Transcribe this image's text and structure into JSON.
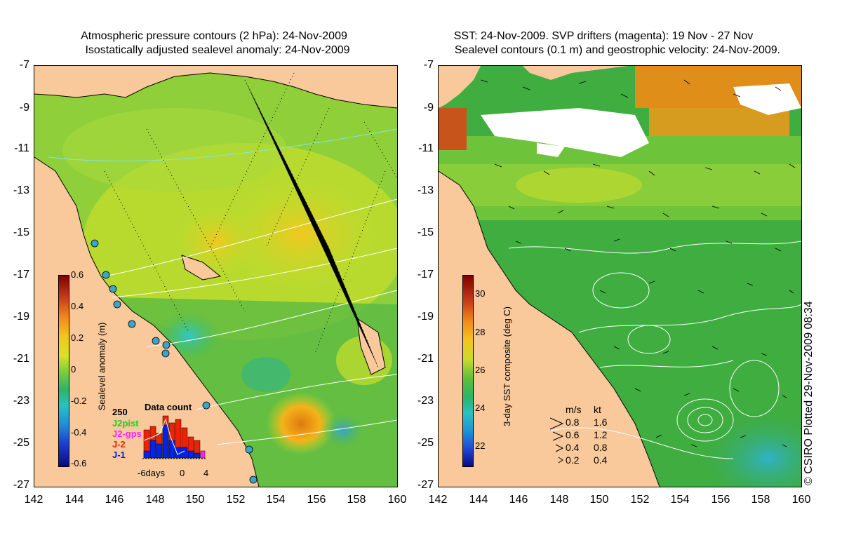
{
  "left_panel": {
    "title_line1": "Atmospheric pressure contours (2 hPa): 24-Nov-2009",
    "title_line2": "Isostatically adjusted sealevel anomaly: 24-Nov-2009",
    "colorbar": {
      "label": "Sealevel anomaly (m)",
      "ticks": [
        "0.6",
        "0.4",
        "0.2",
        "0",
        "-0.2",
        "-0.4",
        "-0.6"
      ]
    },
    "data_count": {
      "title": "Data count",
      "max_label": "250",
      "series": [
        {
          "name": "J2pist",
          "color": "#22cc22"
        },
        {
          "name": "J2-gps",
          "color": "#ff22ff"
        },
        {
          "name": "J-2",
          "color": "#ee2200"
        },
        {
          "name": "J-1",
          "color": "#0022ee"
        }
      ],
      "x_labels": [
        "-6days",
        "0",
        "4"
      ]
    }
  },
  "right_panel": {
    "title_line1": "SST: 24-Nov-2009. SVP drifters (magenta): 19 Nov - 27 Nov",
    "title_line2": "Sealevel contours (0.1 m) and geostrophic velocity: 24-Nov-2009.",
    "colorbar": {
      "label": "3-day SST composite (deg C)",
      "ticks": [
        "30",
        "28",
        "26",
        "24",
        "22"
      ]
    },
    "velocity_legend": {
      "header_ms": "m/s",
      "header_kt": "kt",
      "rows": [
        {
          "ms": "0.8",
          "kt": "1.6"
        },
        {
          "ms": "0.6",
          "kt": "1.2"
        },
        {
          "ms": "0.4",
          "kt": "0.8"
        },
        {
          "ms": "0.2",
          "kt": "0.4"
        }
      ]
    }
  },
  "axes": {
    "y_ticks": [
      "-7",
      "-9",
      "-11",
      "-13",
      "-15",
      "-17",
      "-19",
      "-21",
      "-23",
      "-25",
      "-27"
    ],
    "x_ticks": [
      "142",
      "144",
      "146",
      "148",
      "150",
      "152",
      "154",
      "156",
      "158",
      "160"
    ]
  },
  "copyright": "© CSIRO Plotted 29-Nov-2009 08:34",
  "colors": {
    "land": "#f9c89b",
    "sla_ocean": "#7fcf3a",
    "sst_ocean": "#3caa3a"
  }
}
